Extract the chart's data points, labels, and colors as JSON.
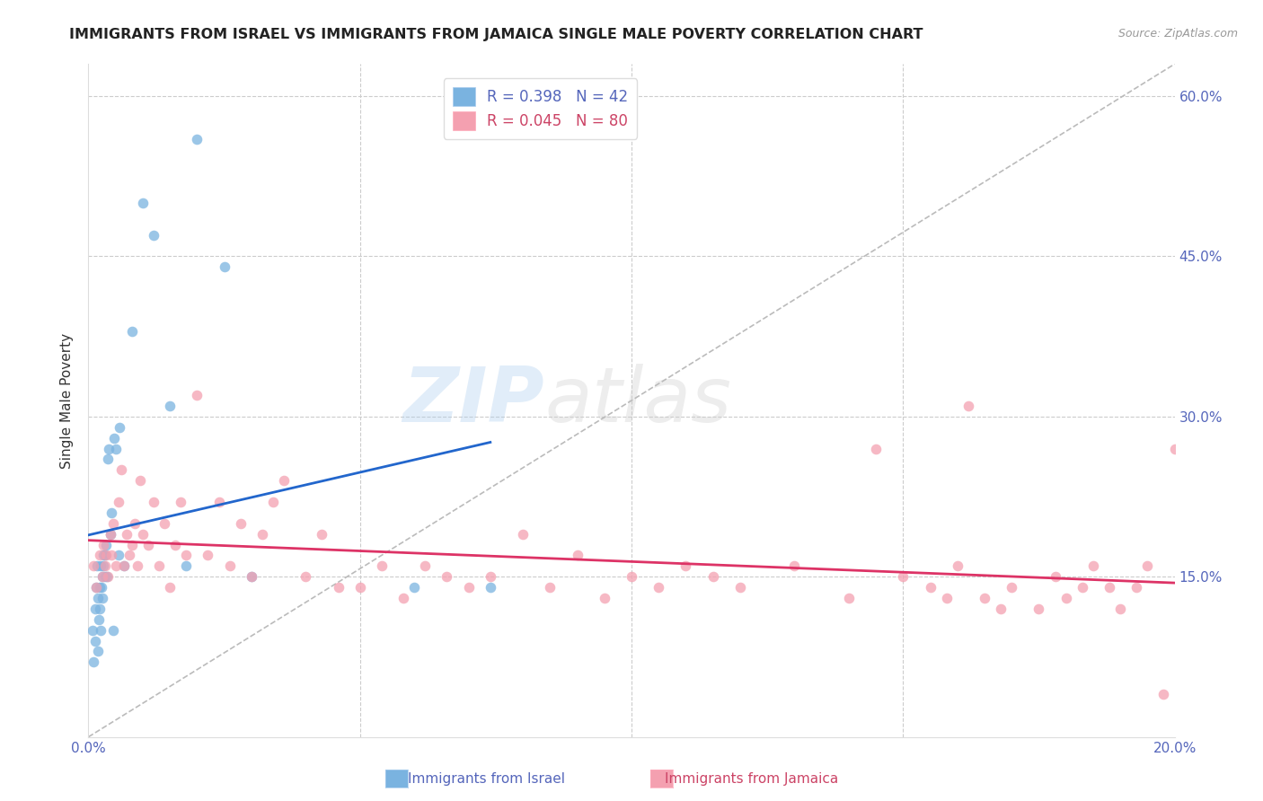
{
  "title": "IMMIGRANTS FROM ISRAEL VS IMMIGRANTS FROM JAMAICA SINGLE MALE POVERTY CORRELATION CHART",
  "source": "Source: ZipAtlas.com",
  "ylabel_label": "Single Male Poverty",
  "x_min": 0.0,
  "x_max": 0.2,
  "y_min": 0.0,
  "y_max": 0.63,
  "israel_color": "#7ab3e0",
  "jamaica_color": "#f4a0b0",
  "israel_line_color": "#2266cc",
  "jamaica_line_color": "#dd3366",
  "diagonal_color": "#bbbbbb",
  "watermark_zip": "ZIP",
  "watermark_atlas": "atlas",
  "israel_x": [
    0.0008,
    0.001,
    0.0012,
    0.0013,
    0.0015,
    0.0016,
    0.0017,
    0.0018,
    0.0019,
    0.002,
    0.0021,
    0.0022,
    0.0023,
    0.0024,
    0.0025,
    0.0026,
    0.0027,
    0.0028,
    0.003,
    0.0031,
    0.0033,
    0.0034,
    0.0036,
    0.0038,
    0.004,
    0.0042,
    0.0045,
    0.0048,
    0.005,
    0.0055,
    0.0058,
    0.0065,
    0.008,
    0.01,
    0.012,
    0.015,
    0.018,
    0.02,
    0.025,
    0.03,
    0.06,
    0.074
  ],
  "israel_y": [
    0.1,
    0.07,
    0.12,
    0.09,
    0.14,
    0.16,
    0.13,
    0.08,
    0.11,
    0.14,
    0.12,
    0.1,
    0.16,
    0.14,
    0.13,
    0.15,
    0.17,
    0.16,
    0.15,
    0.17,
    0.18,
    0.15,
    0.26,
    0.27,
    0.19,
    0.21,
    0.1,
    0.28,
    0.27,
    0.17,
    0.29,
    0.16,
    0.38,
    0.5,
    0.47,
    0.31,
    0.16,
    0.56,
    0.44,
    0.15,
    0.14,
    0.14
  ],
  "jamaica_x": [
    0.001,
    0.0015,
    0.002,
    0.0025,
    0.0028,
    0.003,
    0.0033,
    0.0036,
    0.004,
    0.0043,
    0.0046,
    0.005,
    0.0055,
    0.006,
    0.0065,
    0.007,
    0.0075,
    0.008,
    0.0085,
    0.009,
    0.0095,
    0.01,
    0.011,
    0.012,
    0.013,
    0.014,
    0.015,
    0.016,
    0.017,
    0.018,
    0.02,
    0.022,
    0.024,
    0.026,
    0.028,
    0.03,
    0.032,
    0.034,
    0.036,
    0.04,
    0.043,
    0.046,
    0.05,
    0.054,
    0.058,
    0.062,
    0.066,
    0.07,
    0.074,
    0.08,
    0.085,
    0.09,
    0.095,
    0.1,
    0.105,
    0.11,
    0.115,
    0.12,
    0.13,
    0.14,
    0.145,
    0.15,
    0.155,
    0.158,
    0.16,
    0.162,
    0.165,
    0.168,
    0.17,
    0.175,
    0.178,
    0.18,
    0.183,
    0.185,
    0.188,
    0.19,
    0.193,
    0.195,
    0.198,
    0.2
  ],
  "jamaica_y": [
    0.16,
    0.14,
    0.17,
    0.15,
    0.18,
    0.16,
    0.17,
    0.15,
    0.19,
    0.17,
    0.2,
    0.16,
    0.22,
    0.25,
    0.16,
    0.19,
    0.17,
    0.18,
    0.2,
    0.16,
    0.24,
    0.19,
    0.18,
    0.22,
    0.16,
    0.2,
    0.14,
    0.18,
    0.22,
    0.17,
    0.32,
    0.17,
    0.22,
    0.16,
    0.2,
    0.15,
    0.19,
    0.22,
    0.24,
    0.15,
    0.19,
    0.14,
    0.14,
    0.16,
    0.13,
    0.16,
    0.15,
    0.14,
    0.15,
    0.19,
    0.14,
    0.17,
    0.13,
    0.15,
    0.14,
    0.16,
    0.15,
    0.14,
    0.16,
    0.13,
    0.27,
    0.15,
    0.14,
    0.13,
    0.16,
    0.31,
    0.13,
    0.12,
    0.14,
    0.12,
    0.15,
    0.13,
    0.14,
    0.16,
    0.14,
    0.12,
    0.14,
    0.16,
    0.04,
    0.27
  ]
}
